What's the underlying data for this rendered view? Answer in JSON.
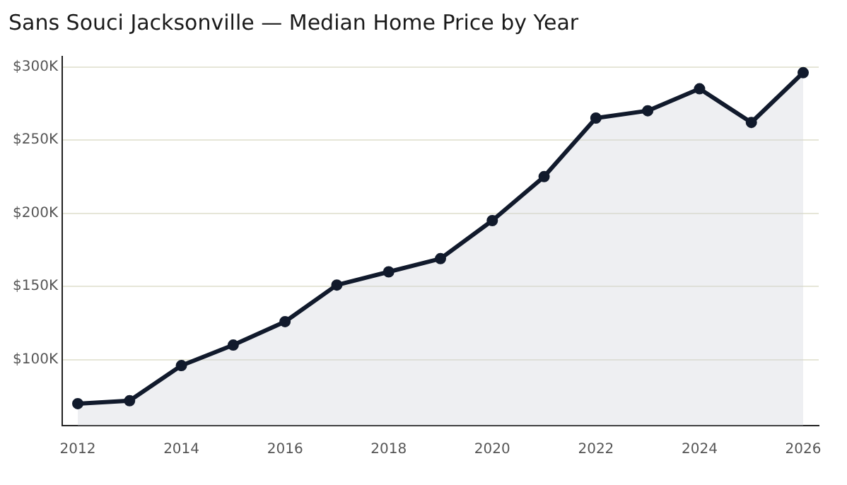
{
  "chart_data": {
    "type": "area",
    "title": "Sans Souci Jacksonville — Median Home Price by Year",
    "x": [
      2012,
      2013,
      2014,
      2015,
      2016,
      2017,
      2018,
      2019,
      2020,
      2021,
      2022,
      2023,
      2024,
      2025,
      2026
    ],
    "series": [
      {
        "color": "#111a2c",
        "values": [
          70,
          72,
          96,
          110,
          126,
          151,
          160,
          169,
          195,
          225,
          265,
          270,
          285,
          262,
          296
        ]
      }
    ],
    "xlim": [
      2011.7,
      2026.3
    ],
    "xticks": [
      2012,
      2014,
      2016,
      2018,
      2020,
      2022,
      2024,
      2026
    ],
    "ylim": [
      55,
      307
    ],
    "yticks": [
      {
        "value": 100,
        "label": "$100K"
      },
      {
        "value": 150,
        "label": "$150K"
      },
      {
        "value": 200,
        "label": "$200K"
      },
      {
        "value": 250,
        "label": "$250K"
      },
      {
        "value": 300,
        "label": "$300K"
      }
    ],
    "grid": "y",
    "legend": false,
    "marker": "circle",
    "line_style": "solid"
  }
}
